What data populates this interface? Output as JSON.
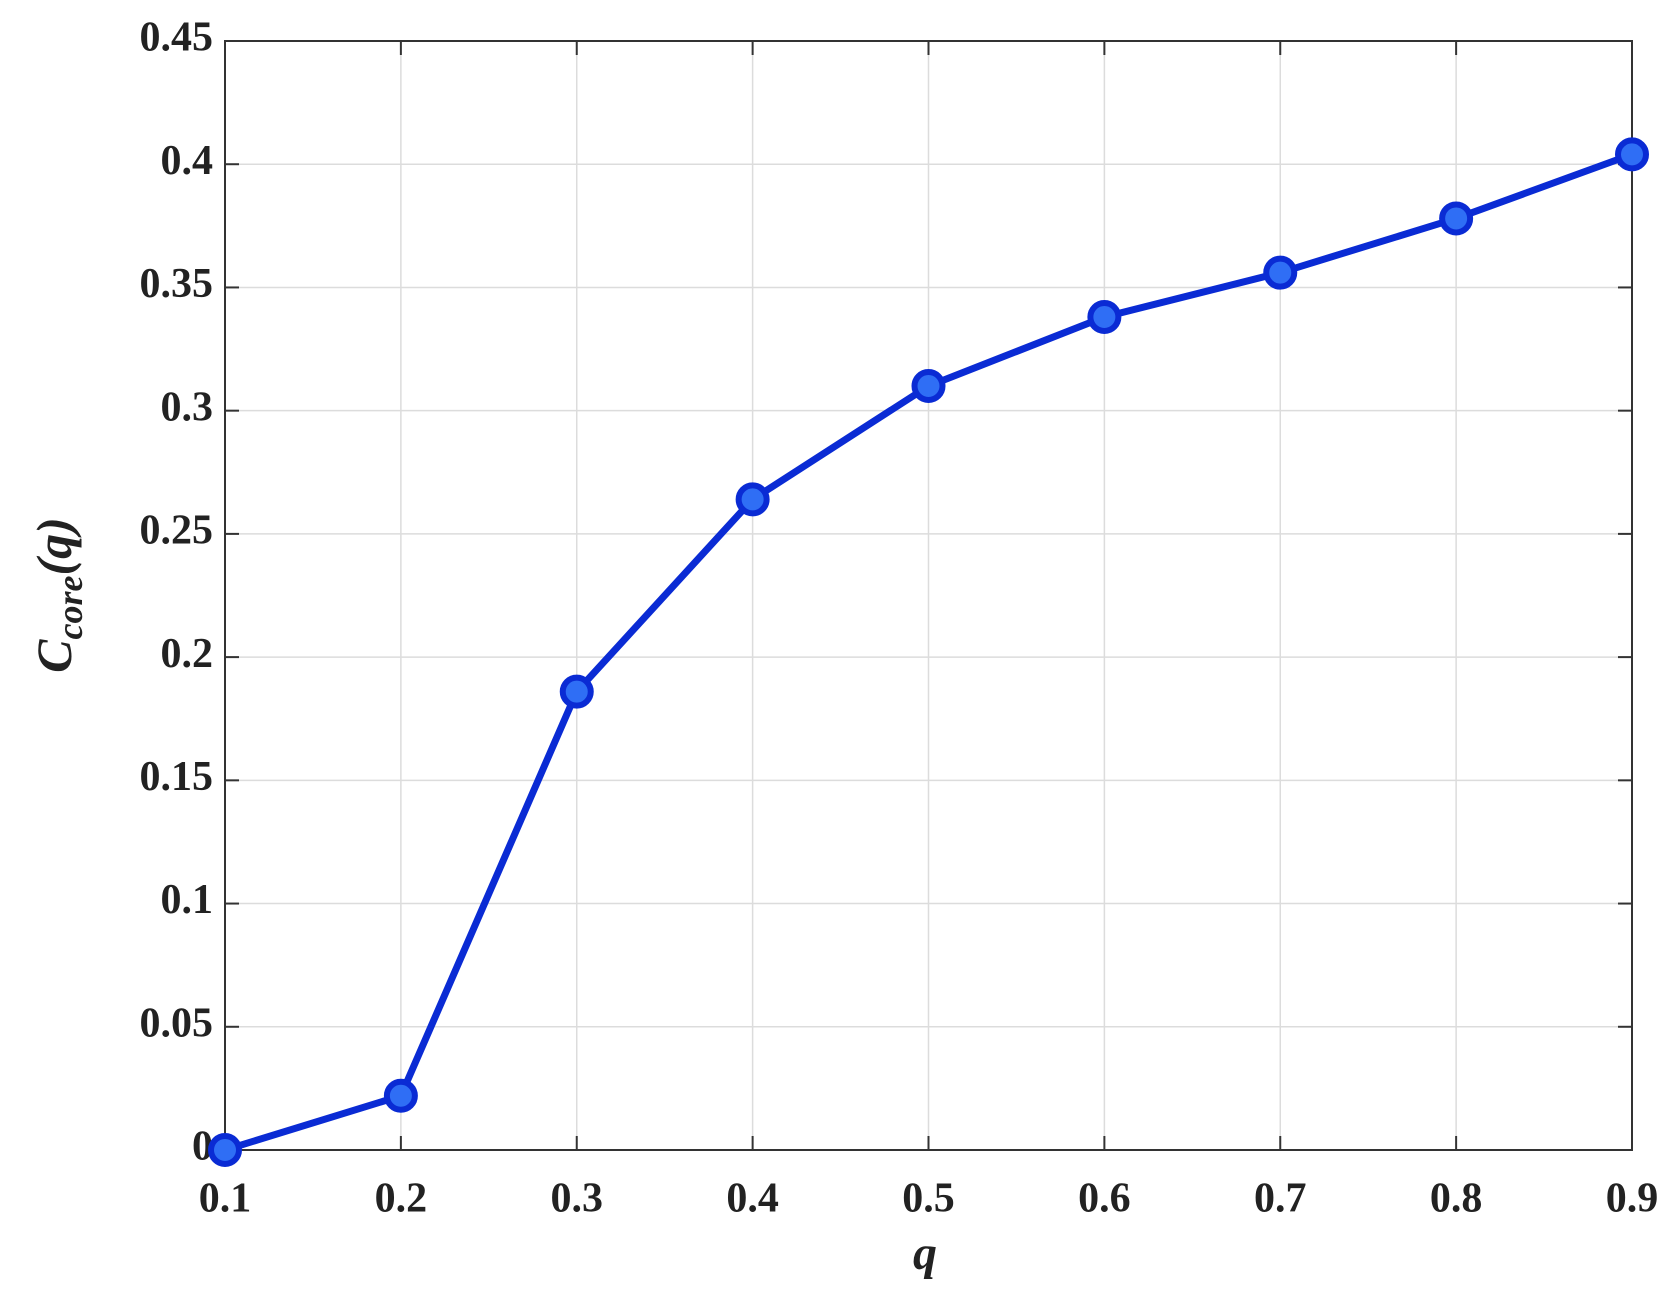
{
  "chart_data": {
    "type": "line",
    "xlabel": "q",
    "ylabel": {
      "main": "C",
      "sub": "core",
      "tail": "(q)"
    },
    "x": [
      0.1,
      0.2,
      0.3,
      0.4,
      0.5,
      0.6,
      0.7,
      0.8,
      0.9
    ],
    "series": [
      {
        "color": "#0a2bd4",
        "marker_color": "#2f6ef5",
        "values": [
          0,
          0.022,
          0.186,
          0.264,
          0.31,
          0.338,
          0.356,
          0.378,
          0.404
        ]
      }
    ],
    "xlim": [
      0.1,
      0.9
    ],
    "xticks": [
      0.1,
      0.2,
      0.3,
      0.4,
      0.5,
      0.6,
      0.7,
      0.8,
      0.9
    ],
    "ylim": [
      0,
      0.45
    ],
    "yticks": [
      0,
      0.05,
      0.1,
      0.15,
      0.2,
      0.25,
      0.3,
      0.35,
      0.4,
      0.45
    ],
    "grid": true
  }
}
